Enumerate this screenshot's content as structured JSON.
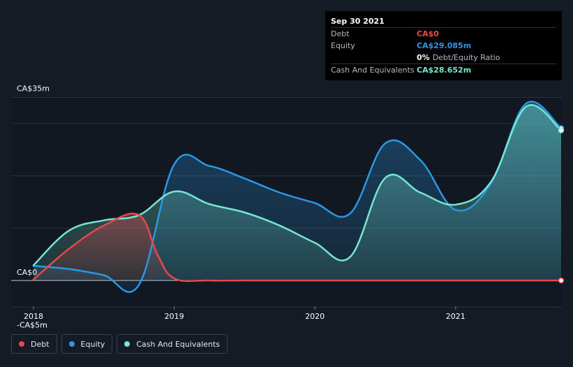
{
  "tooltip": {
    "date": "Sep 30 2021",
    "debt_label": "Debt",
    "debt_value": "CA$0",
    "equity_label": "Equity",
    "equity_value": "CA$29.085m",
    "ratio_value": "0%",
    "ratio_label": "Debt/Equity Ratio",
    "cash_label": "Cash And Equivalents",
    "cash_value": "CA$28.652m"
  },
  "legend": {
    "debt": "Debt",
    "equity": "Equity",
    "cash": "Cash And Equivalents"
  },
  "colors": {
    "debt": "#e5484d",
    "equity": "#2b97e6",
    "cash": "#75e6d0",
    "background": "#151b24"
  },
  "chart_data": {
    "type": "area",
    "ylim": [
      -5,
      35
    ],
    "y_tick_labels": [
      {
        "value": 35,
        "label": "CA$35m"
      },
      {
        "value": 0,
        "label": "CA$0"
      },
      {
        "value": -5,
        "label": "-CA$5m"
      }
    ],
    "y_gridlines": [
      35,
      30,
      20,
      10,
      0
    ],
    "xlim": [
      2018.0,
      2021.75
    ],
    "x_ticks": [
      {
        "value": 2018,
        "label": "2018"
      },
      {
        "value": 2019,
        "label": "2019"
      },
      {
        "value": 2020,
        "label": "2020"
      },
      {
        "value": 2021,
        "label": "2021"
      }
    ],
    "series": [
      {
        "name": "Debt",
        "color": "#e5484d",
        "points": [
          [
            2018.0,
            0.2
          ],
          [
            2018.25,
            6
          ],
          [
            2018.5,
            10.5
          ],
          [
            2018.75,
            12.5
          ],
          [
            2018.88,
            5
          ],
          [
            2019.0,
            0.4
          ],
          [
            2019.25,
            0
          ],
          [
            2019.5,
            0
          ],
          [
            2020.0,
            0
          ],
          [
            2020.5,
            0
          ],
          [
            2021.0,
            0
          ],
          [
            2021.5,
            0
          ],
          [
            2021.75,
            0
          ]
        ]
      },
      {
        "name": "Equity",
        "color": "#2b97e6",
        "points": [
          [
            2018.0,
            2.8
          ],
          [
            2018.25,
            2.2
          ],
          [
            2018.5,
            1
          ],
          [
            2018.75,
            -0.8
          ],
          [
            2019.0,
            22.2
          ],
          [
            2019.25,
            21.9
          ],
          [
            2019.5,
            19.5
          ],
          [
            2019.75,
            16.8
          ],
          [
            2020.0,
            14.8
          ],
          [
            2020.25,
            12.8
          ],
          [
            2020.5,
            26.2
          ],
          [
            2020.75,
            23
          ],
          [
            2021.0,
            13.5
          ],
          [
            2021.25,
            18.5
          ],
          [
            2021.5,
            33.8
          ],
          [
            2021.75,
            29.1
          ]
        ]
      },
      {
        "name": "Cash And Equivalents",
        "color": "#75e6d0",
        "points": [
          [
            2018.0,
            2.9
          ],
          [
            2018.25,
            9.5
          ],
          [
            2018.5,
            11.5
          ],
          [
            2018.75,
            12.5
          ],
          [
            2019.0,
            17
          ],
          [
            2019.25,
            14.6
          ],
          [
            2019.5,
            13
          ],
          [
            2019.75,
            10.5
          ],
          [
            2020.0,
            7.2
          ],
          [
            2020.25,
            4.5
          ],
          [
            2020.5,
            19.6
          ],
          [
            2020.75,
            16.8
          ],
          [
            2021.0,
            14.5
          ],
          [
            2021.25,
            18.8
          ],
          [
            2021.5,
            33.2
          ],
          [
            2021.75,
            28.7
          ]
        ]
      }
    ]
  }
}
